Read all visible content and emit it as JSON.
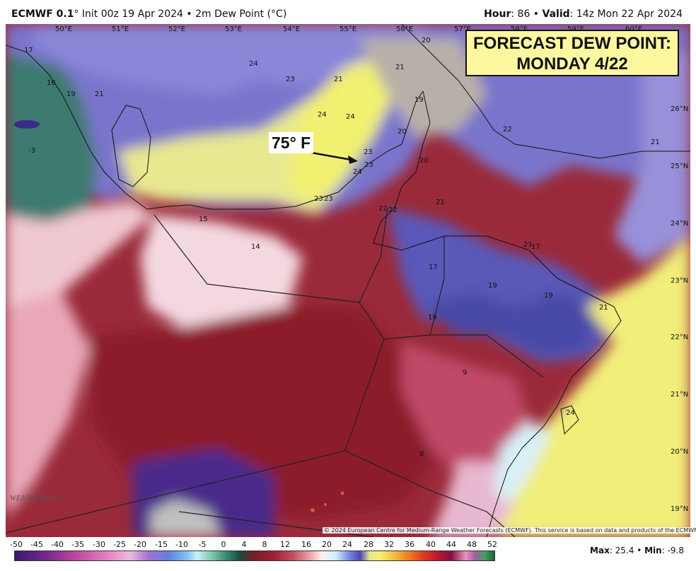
{
  "header": {
    "model": "ECMWF 0.1",
    "model_suffix": "°",
    "init_text": "Init 00z 19 Apr 2024",
    "field": "2m Dew Point (°C)",
    "hour_label": "Hour",
    "hour_value": "86",
    "valid_label": "Valid",
    "valid_value": "14z Mon 22 Apr 2024"
  },
  "forecast_box": {
    "line1": "FORECAST DEW POINT:",
    "line2": "MONDAY 4/22"
  },
  "annotation": {
    "text": "75° F"
  },
  "longitude_labels": [
    "50°E",
    "51°E",
    "52°E",
    "53°E",
    "54°E",
    "55°E",
    "56°E",
    "57°E",
    "58°E",
    "59°E",
    "60°E"
  ],
  "latitude_labels": [
    "26°N",
    "25°N",
    "24°N",
    "23°N",
    "22°N",
    "21°N",
    "20°N",
    "19°N"
  ],
  "point_values": [
    "17",
    "16",
    "19",
    "21",
    "-3",
    "24",
    "23",
    "21",
    "21",
    "20",
    "24",
    "24",
    "19",
    "20",
    "22",
    "21",
    "20",
    "23",
    "23",
    "24",
    "23",
    "23",
    "22",
    "22",
    "21",
    "15",
    "14",
    "21",
    "17",
    "17",
    "19",
    "19",
    "19",
    "21",
    "9",
    "24",
    "8"
  ],
  "colorbar": {
    "ticks": [
      "-50",
      "-45",
      "-40",
      "-35",
      "-30",
      "-25",
      "-20",
      "-15",
      "-10",
      "-5",
      "0",
      "4",
      "8",
      "12",
      "16",
      "20",
      "24",
      "28",
      "32",
      "36",
      "40",
      "44",
      "48",
      "52"
    ]
  },
  "stats": {
    "max_label": "Max",
    "max_value": "25.4",
    "min_label": "Min",
    "min_value": "-9.8"
  },
  "copyright": "© 2024 European Centre for Medium-Range Weather Forecasts (ECMWF). This service is based on data and products of the ECMWF.",
  "logo": "WEATHERBELL",
  "colors": {
    "dry_red": "#9a2030",
    "moist_yellow": "#f4f080",
    "blue_band": "#6a68c8",
    "teal": "#3a7a70"
  }
}
